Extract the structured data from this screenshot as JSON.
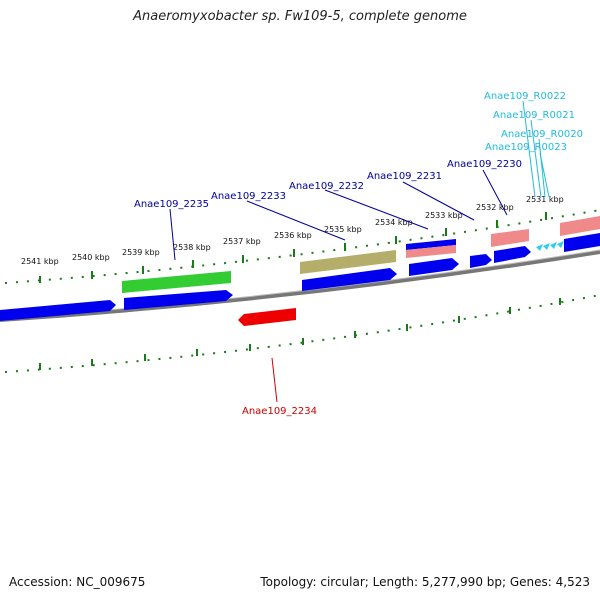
{
  "title": "Anaeromyxobacter sp. Fw109-5, complete genome",
  "footer": {
    "accession": "Accession: NC_009675",
    "summary": "Topology: circular; Length: 5,277,990 bp; Genes: 4,523"
  },
  "colors": {
    "forward_cds": "#0000ee",
    "reverse_cds": "#ee0000",
    "green_feature": "#33cc33",
    "olive_feature": "#b5ad6a",
    "pink_feature": "#f08a8a",
    "rna": "#33ccee",
    "tick": "#1a7a1a",
    "backbone": "#777777",
    "label_blue": "#000099",
    "label_red": "#cc0000",
    "label_cyan": "#22bbdd"
  },
  "ticks": [
    {
      "label": "2541 kbp"
    },
    {
      "label": "2540 kbp"
    },
    {
      "label": "2539 kbp"
    },
    {
      "label": "2538 kbp"
    },
    {
      "label": "2537 kbp"
    },
    {
      "label": "2536 kbp"
    },
    {
      "label": "2535 kbp"
    },
    {
      "label": "2534 kbp"
    },
    {
      "label": "2533 kbp"
    },
    {
      "label": "2532 kbp"
    },
    {
      "label": "2531 kbp"
    }
  ],
  "genes": [
    {
      "name": "Anae109_2235",
      "type": "cds_forward"
    },
    {
      "name": "Anae109_2233",
      "type": "cds_forward"
    },
    {
      "name": "Anae109_2232",
      "type": "cds_forward"
    },
    {
      "name": "Anae109_2231",
      "type": "cds_forward"
    },
    {
      "name": "Anae109_2230",
      "type": "cds_forward"
    },
    {
      "name": "Anae109_R0022",
      "type": "rna"
    },
    {
      "name": "Anae109_R0021",
      "type": "rna"
    },
    {
      "name": "Anae109_R0020",
      "type": "rna"
    },
    {
      "name": "Anae109_R0023",
      "type": "rna"
    },
    {
      "name": "Anae109_2234",
      "type": "cds_reverse"
    }
  ]
}
